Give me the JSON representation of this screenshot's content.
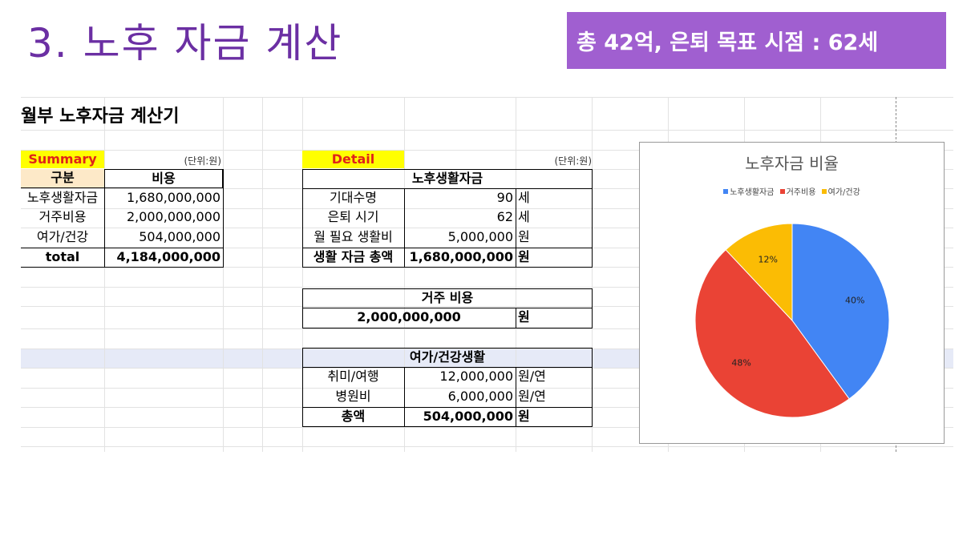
{
  "slide": {
    "title": "3. 노후 자금 계산",
    "banner": "총 42억, 은퇴 목표 시점  : 62세"
  },
  "sheet": {
    "heading": "월부 노후자금 계산기",
    "summary": {
      "tag": "Summary",
      "unit": "(단위:원)",
      "headers": [
        "구분",
        "비용"
      ],
      "rows": [
        {
          "label": "노후생활자금",
          "value": "1,680,000,000"
        },
        {
          "label": "거주비용",
          "value": "2,000,000,000"
        },
        {
          "label": "여가/건강",
          "value": "504,000,000"
        },
        {
          "label": "total",
          "value": "4,184,000,000"
        }
      ]
    },
    "detail": {
      "tag": "Detail",
      "unit": "(단위:원)",
      "living": {
        "title": "노후생활자금",
        "rows": [
          {
            "label": "기대수명",
            "value": "90",
            "unit": "세"
          },
          {
            "label": "은퇴 시기",
            "value": "62",
            "unit": "세"
          },
          {
            "label": "월 필요 생활비",
            "value": "5,000,000",
            "unit": "원"
          },
          {
            "label": "생활 자금 총액",
            "value": "1,680,000,000",
            "unit": "원"
          }
        ]
      },
      "housing": {
        "title": "거주 비용",
        "value": "2,000,000,000",
        "unit": "원"
      },
      "leisure": {
        "title": "여가/건강생활",
        "rows": [
          {
            "label": "취미/여행",
            "value": "12,000,000",
            "unit": "원/연"
          },
          {
            "label": "병원비",
            "value": "6,000,000",
            "unit": "원/연"
          },
          {
            "label": "총액",
            "value": "504,000,000",
            "unit": "원"
          }
        ]
      }
    }
  },
  "chart_data": {
    "type": "pie",
    "title": "노후자금 비율",
    "categories": [
      "노후생활자금",
      "거주비용",
      "여가/건강"
    ],
    "values": [
      40,
      48,
      12
    ],
    "labels": [
      "40%",
      "48%",
      "12%"
    ],
    "colors": [
      "#4285f4",
      "#ea4335",
      "#fbbc04"
    ],
    "legend": "top"
  }
}
